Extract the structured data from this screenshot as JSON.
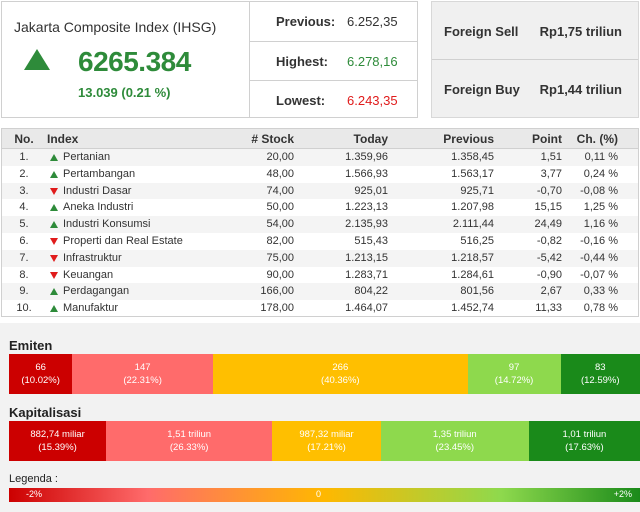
{
  "ihsg": {
    "title": "Jakarta Composite Index (IHSG)",
    "value": "6265.384",
    "change": "13.039 (0.21 %)",
    "direction_icon": "triangle-up-icon"
  },
  "stats": [
    {
      "label": "Previous:",
      "value": "6.252,35",
      "color": "#333333"
    },
    {
      "label": "Highest:",
      "value": "6.278,16",
      "color": "#2e8b3a"
    },
    {
      "label": "Lowest:",
      "value": "6.243,35",
      "color": "#e01b1b"
    }
  ],
  "foreign": [
    {
      "label": "Foreign Sell",
      "value": "Rp1,75 triliun"
    },
    {
      "label": "Foreign Buy",
      "value": "Rp1,44 triliun"
    }
  ],
  "table": {
    "headers": {
      "no": "No.",
      "index": "Index",
      "stock": "# Stock",
      "today": "Today",
      "previous": "Previous",
      "point": "Point",
      "change": "Ch. (%)"
    },
    "rows": [
      {
        "no": "1.",
        "dir": "up",
        "name": "Pertanian",
        "stock": "20,00",
        "today": "1.359,96",
        "previous": "1.358,45",
        "point": "1,51",
        "change": "0,11 %"
      },
      {
        "no": "2.",
        "dir": "up",
        "name": "Pertambangan",
        "stock": "48,00",
        "today": "1.566,93",
        "previous": "1.563,17",
        "point": "3,77",
        "change": "0,24 %"
      },
      {
        "no": "3.",
        "dir": "down",
        "name": "Industri Dasar",
        "stock": "74,00",
        "today": "925,01",
        "previous": "925,71",
        "point": "-0,70",
        "change": "-0,08 %"
      },
      {
        "no": "4.",
        "dir": "up",
        "name": "Aneka Industri",
        "stock": "50,00",
        "today": "1.223,13",
        "previous": "1.207,98",
        "point": "15,15",
        "change": "1,25 %"
      },
      {
        "no": "5.",
        "dir": "up",
        "name": "Industri Konsumsi",
        "stock": "54,00",
        "today": "2.135,93",
        "previous": "2.111,44",
        "point": "24,49",
        "change": "1,16 %"
      },
      {
        "no": "6.",
        "dir": "down",
        "name": "Properti dan Real Estate",
        "stock": "82,00",
        "today": "515,43",
        "previous": "516,25",
        "point": "-0,82",
        "change": "-0,16 %"
      },
      {
        "no": "7.",
        "dir": "down",
        "name": "Infrastruktur",
        "stock": "75,00",
        "today": "1.213,15",
        "previous": "1.218,57",
        "point": "-5,42",
        "change": "-0,44 %"
      },
      {
        "no": "8.",
        "dir": "down",
        "name": "Keuangan",
        "stock": "90,00",
        "today": "1.283,71",
        "previous": "1.284,61",
        "point": "-0,90",
        "change": "-0,07 %"
      },
      {
        "no": "9.",
        "dir": "up",
        "name": "Perdagangan",
        "stock": "166,00",
        "today": "804,22",
        "previous": "801,56",
        "point": "2,67",
        "change": "0,33 %"
      },
      {
        "no": "10.",
        "dir": "up",
        "name": "Manufaktur",
        "stock": "178,00",
        "today": "1.464,07",
        "previous": "1.452,74",
        "point": "11,33",
        "change": "0,78 %"
      }
    ]
  },
  "emiten": {
    "label": "Emiten",
    "segments": [
      {
        "value": "66",
        "pct": "(10.02%)",
        "share": 10.02,
        "color": "#cc0000"
      },
      {
        "value": "147",
        "pct": "(22.31%)",
        "share": 22.31,
        "color": "#ff6b6b"
      },
      {
        "value": "266",
        "pct": "(40.36%)",
        "share": 40.36,
        "color": "#ffbf00"
      },
      {
        "value": "97",
        "pct": "(14.72%)",
        "share": 14.72,
        "color": "#8ed94d"
      },
      {
        "value": "83",
        "pct": "(12.59%)",
        "share": 12.59,
        "color": "#1a8a1a"
      }
    ]
  },
  "kapitalisasi": {
    "label": "Kapitalisasi",
    "segments": [
      {
        "value": "882,74 miliar",
        "pct": "(15.39%)",
        "share": 15.39,
        "color": "#cc0000"
      },
      {
        "value": "1,51 triliun",
        "pct": "(26.33%)",
        "share": 26.33,
        "color": "#ff6b6b"
      },
      {
        "value": "987,32 miliar",
        "pct": "(17.21%)",
        "share": 17.21,
        "color": "#ffbf00"
      },
      {
        "value": "1,35 triliun",
        "pct": "(23.45%)",
        "share": 23.45,
        "color": "#8ed94d"
      },
      {
        "value": "1,01 triliun",
        "pct": "(17.63%)",
        "share": 17.63,
        "color": "#1a8a1a"
      }
    ]
  },
  "legend": {
    "label": "Legenda :",
    "min": "-2%",
    "mid": "0",
    "max": "+2%"
  }
}
